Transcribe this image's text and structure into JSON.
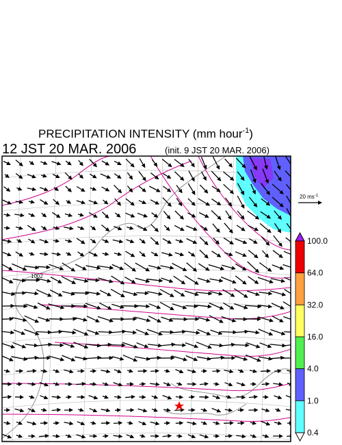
{
  "title": {
    "text": "PRECIPITATION INTENSITY (mm hour",
    "superscript": "-1",
    "close": ")"
  },
  "valid_time": "12 JST 20 MAR. 2006",
  "init_time": "(init. 9 JST 20 MAR. 2006)",
  "reference_vector": {
    "label": "20 ms",
    "superscript": "-1"
  },
  "isobar_label": "1002",
  "colorbar": {
    "labels": [
      "100.0",
      "64.0",
      "32.0",
      "16.0",
      "4.0",
      "1.0",
      "0.4"
    ],
    "colors": [
      "#a020f0",
      "#ee0000",
      "#ffa040",
      "#ffff60",
      "#50ee50",
      "#6060ff",
      "#60ffff",
      "#ffffff"
    ]
  }
}
